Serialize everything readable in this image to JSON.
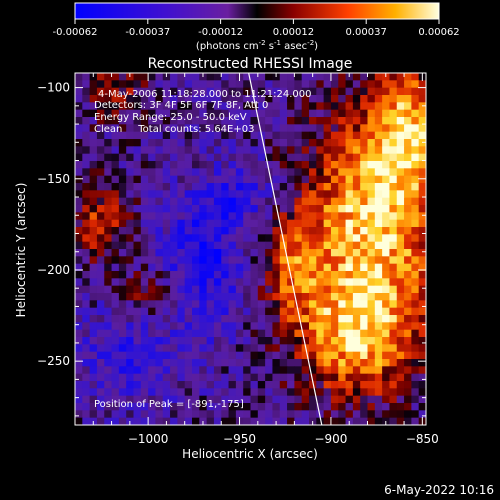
{
  "footer_timestamp": "6-May-2022 10:16",
  "colorbar": {
    "ticks": [
      "-0.00062",
      "-0.00037",
      "-0.00012",
      "0.00012",
      "0.00037",
      "0.00062"
    ],
    "unit_prefix": "(photons cm",
    "unit_sup1": "-2",
    "unit_mid": " s",
    "unit_sup2": "-1",
    "unit_mid2": " asec",
    "unit_sup3": "-2",
    "unit_suffix": ")",
    "range": [
      -0.00062,
      0.00062
    ]
  },
  "chart_data": {
    "type": "heatmap",
    "title": "Reconstructed RHESSI Image",
    "xlabel": "Heliocentric X (arcsec)",
    "ylabel": "Heliocentric Y (arcsec)",
    "xlim": [
      -1040,
      -848
    ],
    "ylim": [
      -285,
      -92
    ],
    "x_ticks": [
      {
        "value": -1000,
        "label": "−1000"
      },
      {
        "value": -950,
        "label": "−950"
      },
      {
        "value": -900,
        "label": "−900"
      },
      {
        "value": -850,
        "label": "−850"
      }
    ],
    "y_ticks": [
      {
        "value": -100,
        "label": "−100"
      },
      {
        "value": -150,
        "label": "−150"
      },
      {
        "value": -200,
        "label": "−200"
      },
      {
        "value": -250,
        "label": "−250"
      }
    ],
    "annotations": [
      "4-May-2006 11:18:28.000 to 11:21:24.000",
      "Detectors: 3F 4F 5F 6F 7F 8F, Att 0",
      "Energy Range: 25.0 - 50.0 keV",
      "Clean     Total counts: 5.64E+03"
    ],
    "peak_label": "Position of Peak = [-891,-175]",
    "peak": [
      -891,
      -175
    ],
    "limb_line": [
      [
        -945,
        -92
      ],
      [
        -905,
        -285
      ]
    ]
  }
}
